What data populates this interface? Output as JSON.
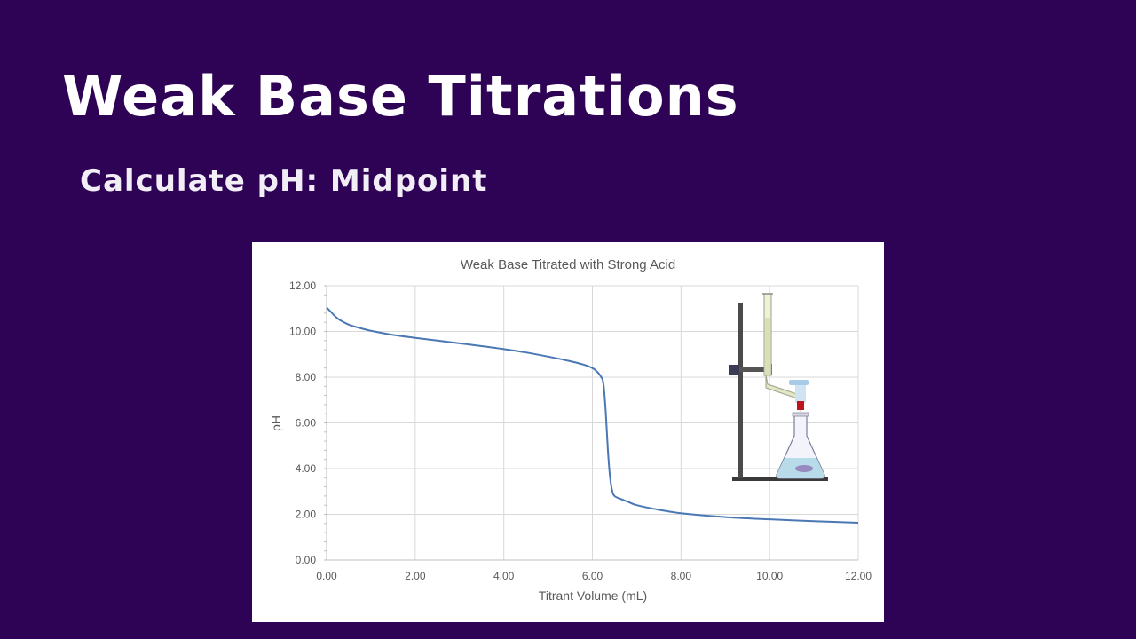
{
  "slide": {
    "title": "Weak Base Titrations",
    "subtitle": "Calculate pH: Midpoint"
  },
  "colors": {
    "background": "#2e0356",
    "title_text": "#ffffff",
    "curve": "#4a78b5",
    "grid": "#d9d9d9"
  },
  "chart_data": {
    "type": "line",
    "title": "Weak Base Titrated with Strong Acid",
    "xlabel": "Titrant Volume (mL)",
    "ylabel": "pH",
    "xlim": [
      0,
      12
    ],
    "ylim": [
      0,
      12
    ],
    "x_ticks": [
      "0.00",
      "2.00",
      "4.00",
      "6.00",
      "8.00",
      "10.00",
      "12.00"
    ],
    "y_ticks": [
      "0.00",
      "2.00",
      "4.00",
      "6.00",
      "8.00",
      "10.00",
      "12.00"
    ],
    "grid": true,
    "legend": "none",
    "series": [
      {
        "x": [
          0,
          0.1,
          0.2,
          0.3,
          0.5,
          0.75,
          1.0,
          1.5,
          2.0,
          2.5,
          3.0,
          3.5,
          4.0,
          4.5,
          5.0,
          5.5,
          5.8,
          6.0,
          6.1,
          6.2,
          6.25,
          6.3,
          6.35,
          6.4,
          6.45,
          6.5,
          6.6,
          6.8,
          7.0,
          7.5,
          8.0,
          9.0,
          10.0,
          11.0,
          12.0
        ],
        "y": [
          11.05,
          10.85,
          10.65,
          10.5,
          10.3,
          10.15,
          10.03,
          9.85,
          9.72,
          9.6,
          9.48,
          9.36,
          9.23,
          9.08,
          8.9,
          8.7,
          8.55,
          8.4,
          8.25,
          8.0,
          7.7,
          6.5,
          4.8,
          3.6,
          3.0,
          2.8,
          2.7,
          2.55,
          2.4,
          2.2,
          2.05,
          1.88,
          1.78,
          1.7,
          1.63
        ]
      }
    ]
  },
  "inset_image": {
    "icon": "titration-apparatus-icon"
  }
}
